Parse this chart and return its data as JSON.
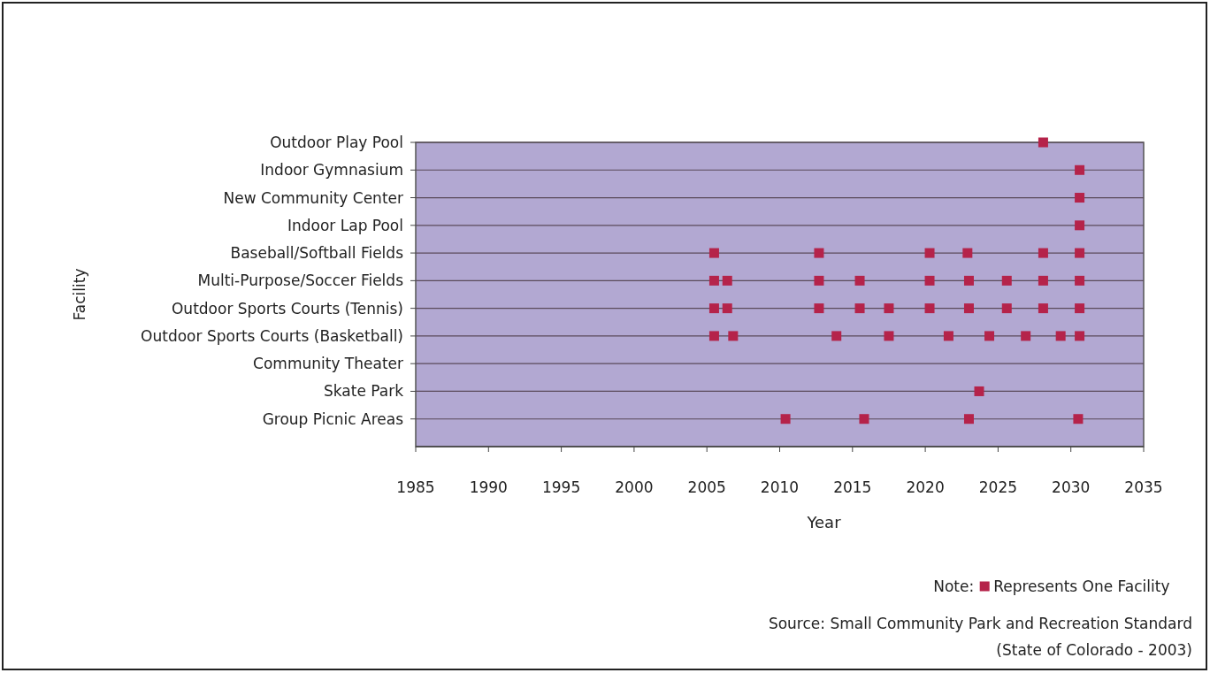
{
  "chart_data": {
    "type": "scatter",
    "orientation": "horizontal",
    "xlabel": "Year",
    "ylabel": "Facility",
    "categories": [
      "Outdoor Play Pool",
      "Indoor Gymnasium",
      "New Community Center",
      "Indoor Lap Pool",
      "Baseball/Softball Fields",
      "Multi-Purpose/Soccer Fields",
      "Outdoor Sports Courts (Tennis)",
      "Outdoor Sports Courts (Basketball)",
      "Community Theater",
      "Skate Park",
      "Group Picnic Areas"
    ],
    "series": [
      {
        "name": "Represents One Facility",
        "color": "#b5234a",
        "x": [
          "Outdoor Play Pool",
          "Indoor Gymnasium",
          "New Community Center",
          "Indoor Lap Pool",
          "Baseball/Softball Fields",
          "Baseball/Softball Fields",
          "Baseball/Softball Fields",
          "Baseball/Softball Fields",
          "Baseball/Softball Fields",
          "Baseball/Softball Fields",
          "Multi-Purpose/Soccer Fields",
          "Multi-Purpose/Soccer Fields",
          "Multi-Purpose/Soccer Fields",
          "Multi-Purpose/Soccer Fields",
          "Multi-Purpose/Soccer Fields",
          "Multi-Purpose/Soccer Fields",
          "Multi-Purpose/Soccer Fields",
          "Multi-Purpose/Soccer Fields",
          "Multi-Purpose/Soccer Fields",
          "Outdoor Sports Courts (Tennis)",
          "Outdoor Sports Courts (Tennis)",
          "Outdoor Sports Courts (Tennis)",
          "Outdoor Sports Courts (Tennis)",
          "Outdoor Sports Courts (Tennis)",
          "Outdoor Sports Courts (Tennis)",
          "Outdoor Sports Courts (Tennis)",
          "Outdoor Sports Courts (Tennis)",
          "Outdoor Sports Courts (Tennis)",
          "Outdoor Sports Courts (Tennis)",
          "Outdoor Sports Courts (Basketball)",
          "Outdoor Sports Courts (Basketball)",
          "Outdoor Sports Courts (Basketball)",
          "Outdoor Sports Courts (Basketball)",
          "Outdoor Sports Courts (Basketball)",
          "Outdoor Sports Courts (Basketball)",
          "Outdoor Sports Courts (Basketball)",
          "Outdoor Sports Courts (Basketball)",
          "Outdoor Sports Courts (Basketball)",
          "Skate Park",
          "Group Picnic Areas",
          "Group Picnic Areas",
          "Group Picnic Areas",
          "Group Picnic Areas"
        ],
        "values": [
          2028.1,
          2030.6,
          2030.6,
          2030.6,
          2005.5,
          2012.7,
          2020.3,
          2022.9,
          2028.1,
          2030.6,
          2005.5,
          2006.4,
          2012.7,
          2015.5,
          2020.3,
          2023.0,
          2025.6,
          2028.1,
          2030.6,
          2005.5,
          2006.4,
          2012.7,
          2015.5,
          2017.5,
          2020.3,
          2023.0,
          2025.6,
          2028.1,
          2030.6,
          2005.5,
          2006.8,
          2013.9,
          2017.5,
          2021.6,
          2024.4,
          2026.9,
          2029.3,
          2030.6,
          2023.7,
          2010.4,
          2015.8,
          2023.0,
          2030.5
        ]
      }
    ],
    "xlim": [
      1985,
      2035
    ],
    "xticks": [
      1985,
      1990,
      1995,
      2000,
      2005,
      2010,
      2015,
      2020,
      2025,
      2030,
      2035
    ],
    "grid": "y",
    "marker": "square",
    "legend": "bottom right",
    "legend_title": "Note:",
    "annotations": [
      "Source: Small Community Park and Recreation Standard",
      "(State of Colorado - 2003)"
    ]
  }
}
